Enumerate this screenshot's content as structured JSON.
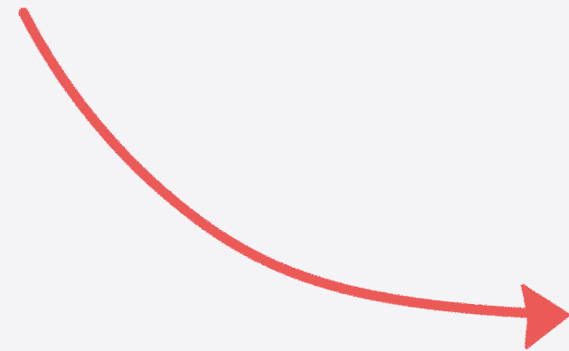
{
  "background_color": "#f4f4f7",
  "arrow": {
    "icon": "hand-drawn-curved-arrow-icon",
    "stroke_color": "#ec5a58",
    "direction": "down-right"
  }
}
